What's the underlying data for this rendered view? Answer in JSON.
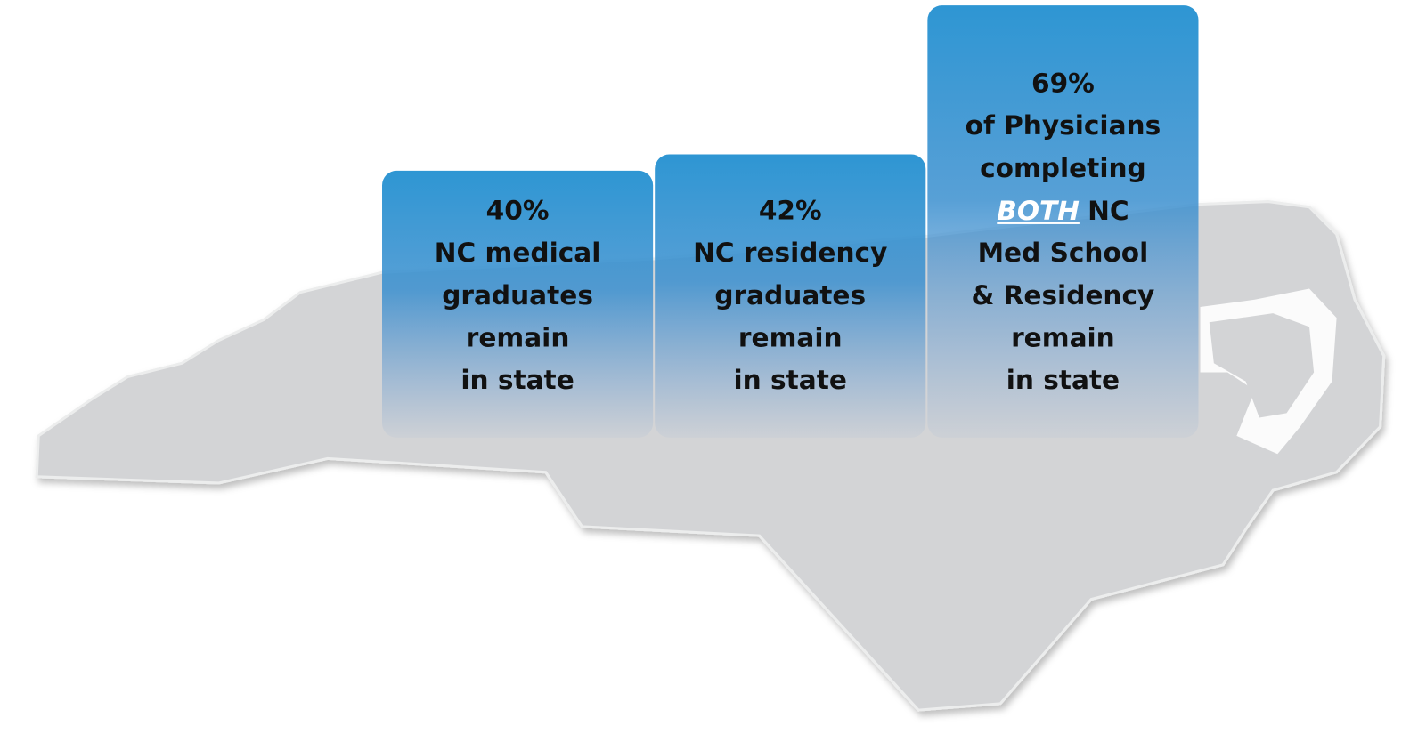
{
  "boxes": [
    {
      "lines": [
        "40%",
        "NC medical",
        "graduates",
        "remain",
        "in state"
      ]
    },
    {
      "lines": [
        "42%",
        "NC residency",
        "graduates",
        "remain",
        "in state"
      ]
    },
    {
      "lines": [
        "69%",
        "of Physicians",
        "completing",
        {
          "emphasis": "BOTH",
          "rest": "NC"
        },
        "Med School",
        "& Residency",
        "remain",
        "in state"
      ]
    }
  ]
}
